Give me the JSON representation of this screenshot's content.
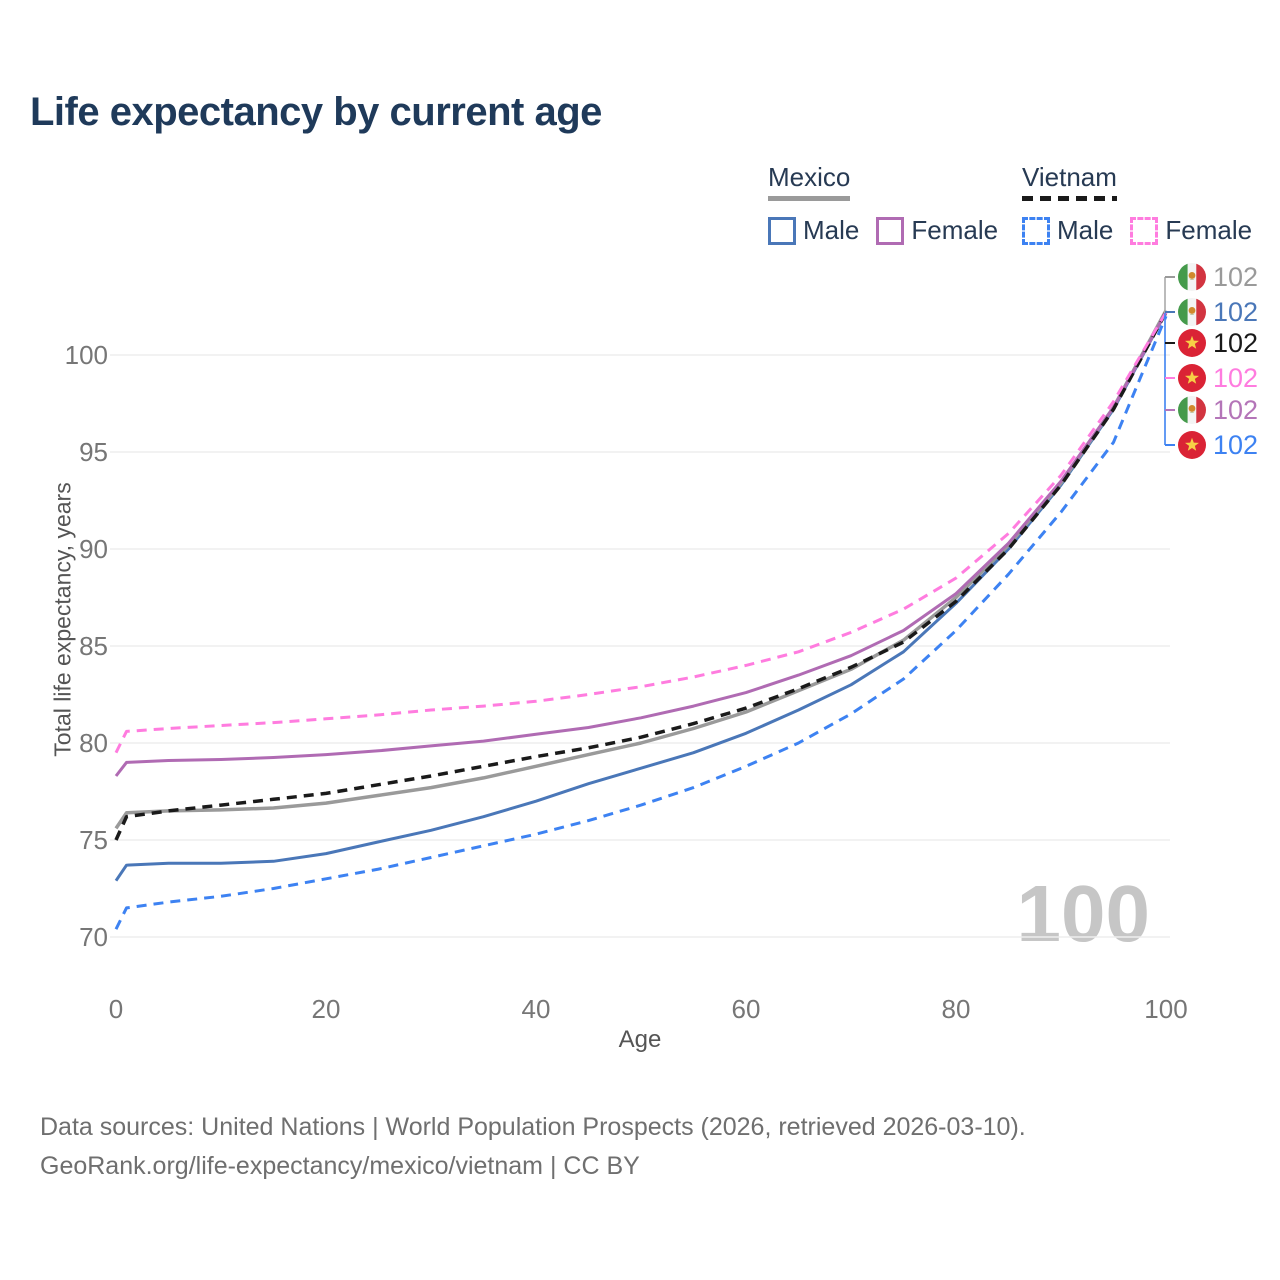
{
  "title": "Life expectancy by current age",
  "legend": {
    "groups": [
      {
        "country": "Mexico",
        "style": "solid",
        "male_label": "Male",
        "female_label": "Female",
        "male_color": "#4a77b8",
        "female_color": "#b06bb3",
        "underline_color": "#9a9a9a"
      },
      {
        "country": "Vietnam",
        "style": "dashed",
        "male_label": "Male",
        "female_label": "Female",
        "male_color": "#3d82f2",
        "female_color": "#ff7cdf",
        "underline_color": "#1a1a1a"
      }
    ]
  },
  "chart_data": {
    "type": "line",
    "title": "Life expectancy by current age",
    "xlabel": "Age",
    "ylabel": "Total life expectancy, years",
    "xlim": [
      0,
      100
    ],
    "ylim": [
      68.5,
      103.5
    ],
    "xticks": [
      0,
      20,
      40,
      60,
      80,
      100
    ],
    "yticks": [
      70,
      75,
      80,
      85,
      90,
      95,
      100
    ],
    "grid": "horizontal-only",
    "legend_position": "top-right",
    "hover_age": "100",
    "x": [
      0,
      1,
      5,
      10,
      15,
      20,
      25,
      30,
      35,
      40,
      45,
      50,
      55,
      60,
      65,
      70,
      75,
      80,
      85,
      90,
      95,
      100
    ],
    "series": [
      {
        "name": "Mexico Male",
        "country": "Mexico",
        "sex": "Male",
        "color": "#4a77b8",
        "dash": false,
        "width": 3,
        "values": [
          72.9,
          73.7,
          73.8,
          73.8,
          73.9,
          74.3,
          74.9,
          75.5,
          76.2,
          77.0,
          77.9,
          78.7,
          79.5,
          80.5,
          81.7,
          83.0,
          84.7,
          87.2,
          90.0,
          93.3,
          97.2,
          102.2
        ]
      },
      {
        "name": "Mexico",
        "country": "Mexico",
        "sex": "Both",
        "color": "#9a9a9a",
        "dash": false,
        "width": 3.5,
        "values": [
          75.6,
          76.4,
          76.5,
          76.55,
          76.65,
          76.9,
          77.3,
          77.7,
          78.2,
          78.8,
          79.4,
          80.0,
          80.75,
          81.6,
          82.7,
          83.8,
          85.3,
          87.5,
          90.2,
          93.4,
          97.3,
          102.3
        ]
      },
      {
        "name": "Mexico Female",
        "country": "Mexico",
        "sex": "Female",
        "color": "#b06bb3",
        "dash": false,
        "width": 3,
        "values": [
          78.3,
          79.0,
          79.1,
          79.15,
          79.25,
          79.4,
          79.6,
          79.85,
          80.1,
          80.45,
          80.8,
          81.3,
          81.9,
          82.6,
          83.5,
          84.5,
          85.8,
          87.7,
          90.3,
          93.5,
          97.3,
          102.2
        ]
      },
      {
        "name": "Vietnam",
        "country": "Vietnam",
        "sex": "Both",
        "color": "#1a1a1a",
        "dash": true,
        "width": 3.5,
        "values": [
          75.0,
          76.2,
          76.5,
          76.8,
          77.1,
          77.4,
          77.85,
          78.3,
          78.8,
          79.3,
          79.75,
          80.3,
          81.0,
          81.8,
          82.8,
          83.9,
          85.2,
          87.3,
          90.0,
          93.3,
          97.2,
          102.2
        ]
      },
      {
        "name": "Vietnam Female",
        "country": "Vietnam",
        "sex": "Female",
        "color": "#ff7cdf",
        "dash": true,
        "width": 3,
        "values": [
          79.5,
          80.6,
          80.75,
          80.9,
          81.05,
          81.25,
          81.45,
          81.7,
          81.9,
          82.15,
          82.5,
          82.9,
          83.4,
          84.0,
          84.7,
          85.7,
          86.9,
          88.5,
          90.8,
          93.8,
          97.6,
          102.2
        ]
      },
      {
        "name": "Vietnam Male",
        "country": "Vietnam",
        "sex": "Male",
        "color": "#3d82f2",
        "dash": true,
        "width": 3,
        "values": [
          70.4,
          71.5,
          71.8,
          72.1,
          72.5,
          73.0,
          73.5,
          74.1,
          74.7,
          75.3,
          76.0,
          76.8,
          77.7,
          78.8,
          80.0,
          81.5,
          83.3,
          85.8,
          88.7,
          91.9,
          95.5,
          102.0
        ]
      }
    ],
    "end_labels": [
      {
        "series": "Mexico",
        "flag": "mexico",
        "value": "102",
        "color": "#9a9a9a"
      },
      {
        "series": "Mexico Male",
        "flag": "mexico",
        "value": "102",
        "color": "#4a77b8"
      },
      {
        "series": "Vietnam",
        "flag": "vietnam",
        "value": "102",
        "color": "#1a1a1a"
      },
      {
        "series": "Vietnam Female",
        "flag": "vietnam",
        "value": "102",
        "color": "#ff7cdf"
      },
      {
        "series": "Mexico Female",
        "flag": "mexico",
        "value": "102",
        "color": "#b475b8"
      },
      {
        "series": "Vietnam Male",
        "flag": "vietnam",
        "value": "102",
        "color": "#3d82f2"
      }
    ]
  },
  "footer": {
    "line1": "Data sources: United Nations | World Population Prospects (2026, retrieved 2026-03-10).",
    "line2": "GeoRank.org/life-expectancy/mexico/vietnam | CC BY"
  }
}
